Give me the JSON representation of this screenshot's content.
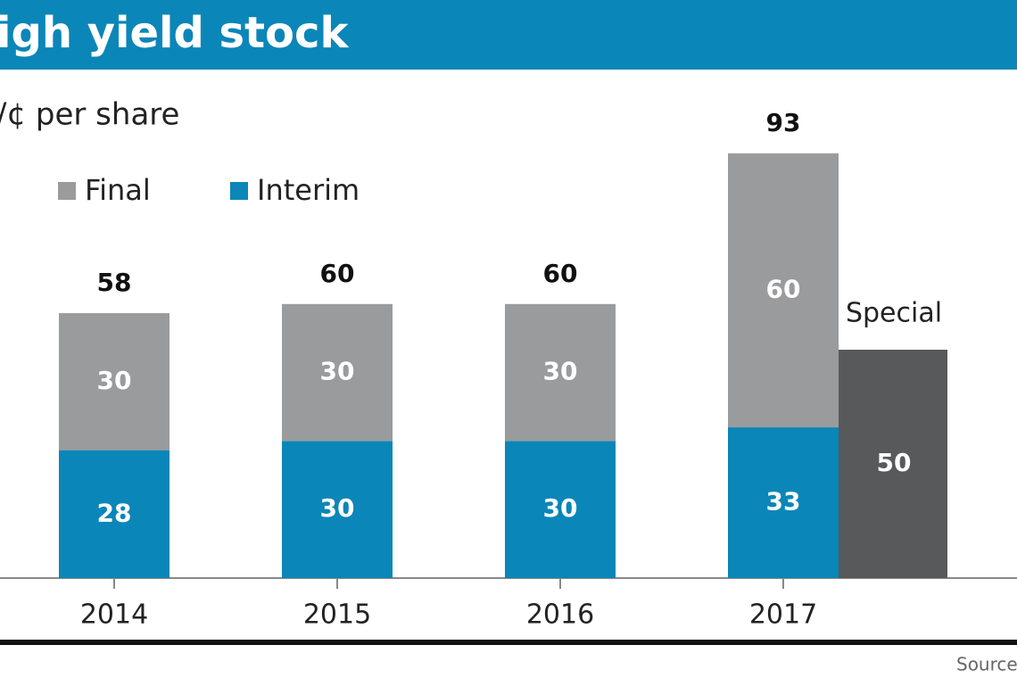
{
  "chart_data": {
    "type": "stacked-bar",
    "title": "igh yield stock",
    "subtitle": "/¢ per share",
    "source": "Source",
    "categories": [
      "2014",
      "2015",
      "2016",
      "2017"
    ],
    "series": [
      {
        "name": "Interim",
        "color": "#0b86b8",
        "values": [
          28,
          30,
          30,
          33
        ]
      },
      {
        "name": "Final",
        "color": "#9a9b9d",
        "values": [
          30,
          30,
          30,
          60
        ]
      }
    ],
    "totals": [
      58,
      60,
      60,
      93
    ],
    "special": {
      "name": "Special",
      "color": "#58595b",
      "values": [
        null,
        null,
        null,
        50
      ]
    },
    "legend": "top-left"
  }
}
